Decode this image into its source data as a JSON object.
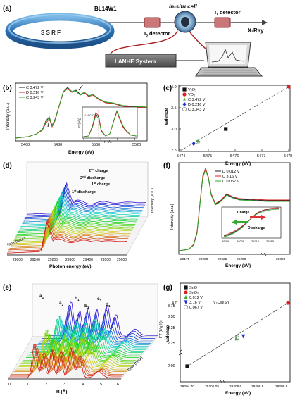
{
  "panel_a": {
    "label": "(a)",
    "beamline": "BL14W1",
    "ring": "S S R F",
    "cell": "In-situ cell",
    "i0": "I",
    "i0_sub": "0",
    "i0_rest": " detector",
    "i1": "I",
    "i1_sub": "1",
    "i1_rest": " detector",
    "xray": "X-Ray",
    "system": "LANHE System"
  },
  "chart_data": [
    {
      "panel": "(b)",
      "type": "line",
      "xlabel": "Energy (eV)",
      "ylabel": "Intensity (a.u.)",
      "xticks": [
        "5460",
        "5480",
        "5500",
        "5520"
      ],
      "series": [
        {
          "name": "C 3.472 V",
          "color": "#202020"
        },
        {
          "name": "D 0.216 V",
          "color": "#cc2222"
        },
        {
          "name": "C 3.343 V",
          "color": "#2eaa2e"
        }
      ],
      "inset": {
        "xlabel": "R (Å)",
        "ylabel": "FT(k²χ)",
        "annotation": "V-N(C/O)",
        "xticks": [
          "0",
          "1",
          "2",
          "3"
        ]
      }
    },
    {
      "panel": "(c)",
      "type": "scatter",
      "xlabel": "Energy (eV)",
      "ylabel": "Valence",
      "xlim": [
        5474,
        5478
      ],
      "ylim": [
        2.5,
        4
      ],
      "xticks": [
        "5474",
        "5475",
        "5476",
        "5477",
        "5478"
      ],
      "yticks": [
        "2.5",
        "3.0",
        "3.5",
        "4.0"
      ],
      "points": [
        {
          "name": "V₂O₃",
          "x": 5475.65,
          "y": 3.0,
          "color": "#111111",
          "marker": "square"
        },
        {
          "name": "VO₂",
          "x": 5478.0,
          "y": 4.0,
          "color": "#dd2222",
          "marker": "circle"
        },
        {
          "name": "C 3.472 V",
          "x": 5474.62,
          "y": 2.7,
          "color": "#33aa33",
          "marker": "star"
        },
        {
          "name": "D 0.216 V",
          "x": 5474.45,
          "y": 2.65,
          "color": "#2233cc",
          "marker": "diamond"
        },
        {
          "name": "C 3.343 V",
          "x": 5474.6,
          "y": 2.69,
          "color": "#888888",
          "marker": "ring"
        }
      ]
    },
    {
      "panel": "(d)",
      "type": "line",
      "xlabel": "Photon energy (eV)",
      "ylabel": "Time (hour)",
      "xticks": [
        "29000",
        "29100",
        "29200",
        "29300",
        "29400",
        "29500",
        "29600"
      ],
      "annotations": [
        {
          "text": "2",
          "sup": "nd",
          "rest": " charge"
        },
        {
          "text": "2",
          "sup": "nd",
          "rest": " discharge"
        },
        {
          "text": "1",
          "sup": "st",
          "rest": " charge"
        },
        {
          "text": "1",
          "sup": "st",
          "rest": " discharge"
        }
      ],
      "side_label": "Intensity (a.u.)"
    },
    {
      "panel": "(e)",
      "type": "line",
      "xlabel": "R (Å)",
      "ylabel": "Time (hour)",
      "xticks": [
        "0",
        "1",
        "2",
        "3",
        "4",
        "5",
        "6"
      ],
      "peaks": [
        {
          "t": "a",
          "s": "1"
        },
        {
          "t": "a",
          "s": "2"
        },
        {
          "t": "b",
          "s": "1"
        },
        {
          "t": "b",
          "s": "2"
        },
        {
          "t": "c",
          "s": "1"
        },
        {
          "t": "d",
          "s": "1"
        }
      ],
      "side_label": "FT (k³χ(k))"
    },
    {
      "panel": "(f)",
      "type": "line",
      "xlabel": "Energy (eV)",
      "ylabel": "Intensity (a.u.)",
      "xticks": [
        "29175",
        "29200",
        "29225",
        "29250",
        "29300"
      ],
      "series": [
        {
          "name": "D 0.012 V",
          "color": "#202020"
        },
        {
          "name": "C 3.16 V",
          "color": "#cc2222"
        },
        {
          "name": "D 0.067 V",
          "color": "#2eaa2e"
        }
      ],
      "inset": {
        "xticks": [
          "29200",
          "29205",
          "29210",
          "29215"
        ],
        "arrow_top": "Charge",
        "arrow_bottom": "Discharge"
      }
    },
    {
      "panel": "(g)",
      "type": "scatter",
      "xlabel": "Energy (eV)",
      "ylabel": "Valence",
      "xticks": [
        "29204.70",
        "29205.05",
        "29208.0",
        "29208.8",
        "29209.6"
      ],
      "yticks": [
        "2.00",
        "2.25",
        "3.25",
        "3.50",
        "3.75",
        "4.0"
      ],
      "points": [
        {
          "name": "SnO",
          "x": 29204.7,
          "y": 2.0,
          "color": "#111111",
          "marker": "square"
        },
        {
          "name": "SnO₂",
          "x": 29209.6,
          "y": 4.0,
          "color": "#dd2222",
          "marker": "circle"
        },
        {
          "name": "0.012 V",
          "x": 29208.1,
          "y": 3.35,
          "color": "#33aa33",
          "marker": "triangle-up"
        },
        {
          "name": "3.16 V",
          "x": 29208.3,
          "y": 3.4,
          "color": "#2233cc",
          "marker": "triangle-down"
        },
        {
          "name": "0.067 V",
          "x": 29208.12,
          "y": 3.37,
          "color": "#888888",
          "marker": "ring"
        }
      ],
      "legend_group": "V₂C@Sn"
    }
  ]
}
